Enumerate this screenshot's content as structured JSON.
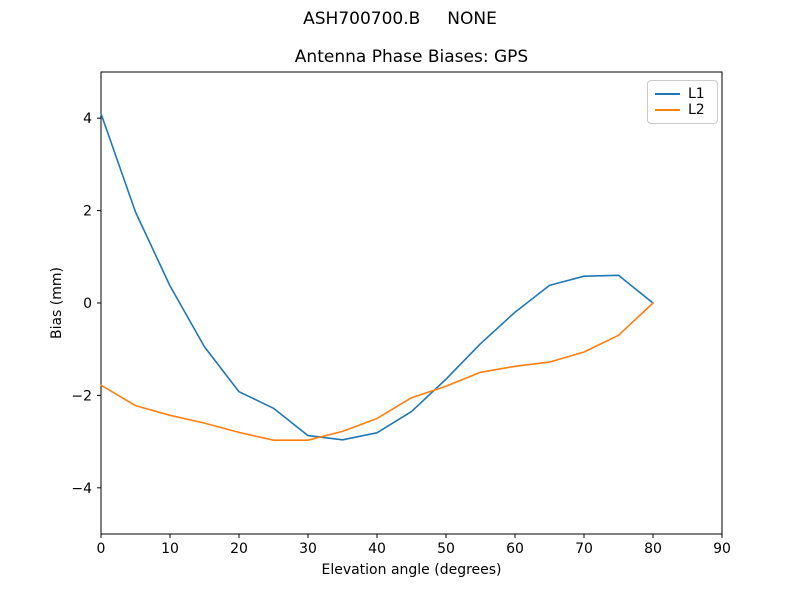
{
  "suptitle": "ASH700700.B     NONE",
  "chart_data": {
    "type": "line",
    "title": "Antenna Phase Biases: GPS",
    "xlabel": "Elevation angle (degrees)",
    "ylabel": "Bias (mm)",
    "xlim": [
      0,
      90
    ],
    "ylim": [
      -5,
      5
    ],
    "x_ticks": [
      0,
      10,
      20,
      30,
      40,
      50,
      60,
      70,
      80,
      90
    ],
    "y_ticks": [
      -4,
      -2,
      0,
      2,
      4
    ],
    "y_tick_labels": [
      "−4",
      "−2",
      "0",
      "2",
      "4"
    ],
    "grid": false,
    "legend_position": "upper right",
    "x": [
      0,
      5,
      10,
      15,
      20,
      25,
      30,
      35,
      40,
      45,
      50,
      55,
      60,
      65,
      70,
      75,
      80
    ],
    "series": [
      {
        "name": "L1",
        "color": "#1f77b4",
        "values": [
          4.1,
          1.97,
          0.37,
          -0.95,
          -1.92,
          -2.28,
          -2.87,
          -2.96,
          -2.81,
          -2.35,
          -1.65,
          -0.88,
          -0.2,
          0.38,
          0.58,
          0.6,
          0.0
        ]
      },
      {
        "name": "L2",
        "color": "#ff7f0e",
        "values": [
          -1.78,
          -2.22,
          -2.43,
          -2.6,
          -2.8,
          -2.97,
          -2.97,
          -2.78,
          -2.5,
          -2.05,
          -1.8,
          -1.5,
          -1.37,
          -1.28,
          -1.06,
          -0.7,
          0.0
        ]
      }
    ]
  }
}
